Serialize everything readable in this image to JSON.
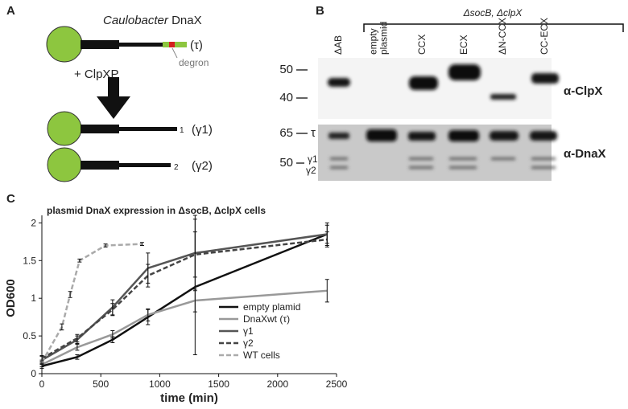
{
  "panels": {
    "A": {
      "letter": "A",
      "organism": "Caulobacter",
      "protein": "DnaX",
      "full_label": "(τ)",
      "degron": "degron",
      "protease": "+ ClpXP",
      "products": [
        {
          "end": "1",
          "label": "(γ1)"
        },
        {
          "end": "2",
          "label": "(γ2)"
        }
      ]
    },
    "B": {
      "letter": "B",
      "strain": "ΔsocB, ΔclpX",
      "lanes": [
        [
          "ΔAB"
        ],
        [
          "empty",
          "plasmid"
        ],
        [
          "CCX"
        ],
        [
          "ECX"
        ],
        [
          "ΔN-CCX"
        ],
        [
          "CC-ECX"
        ]
      ],
      "blots": [
        {
          "antibody": "α-ClpX",
          "markers": [
            "50",
            "40"
          ]
        },
        {
          "antibody": "α-DnaX",
          "markers": [
            "65",
            "50"
          ],
          "bands": [
            "τ",
            "γ1",
            "γ2"
          ]
        }
      ]
    },
    "C": {
      "letter": "C"
    }
  },
  "chart_data": {
    "type": "line",
    "title": "plasmid DnaX expression in ΔsocB, ΔclpX cells",
    "xlabel": "time (min)",
    "ylabel": "OD600",
    "xlim": [
      0,
      2500
    ],
    "xticks": [
      0,
      500,
      1000,
      1500,
      2000,
      2500
    ],
    "ylim": [
      0,
      2.1
    ],
    "yticks": [
      0,
      0.5,
      1,
      1.5,
      2
    ],
    "legend": "lower right",
    "series": [
      {
        "name": "empty plamid",
        "color": "#111111",
        "dash": false,
        "x": [
          0,
          300,
          600,
          900,
          1300,
          2420
        ],
        "values": [
          0.1,
          0.22,
          0.45,
          0.75,
          1.15,
          1.85
        ],
        "errors": [
          0.03,
          0.03,
          0.04,
          0.1,
          0.9,
          0.12
        ]
      },
      {
        "name": "DnaXwt (τ)",
        "color": "#999999",
        "dash": false,
        "x": [
          0,
          300,
          600,
          900,
          1300,
          2420
        ],
        "values": [
          0.12,
          0.35,
          0.52,
          0.78,
          0.97,
          1.1
        ],
        "errors": [
          0.03,
          0.04,
          0.05,
          0.08,
          0.15,
          0.15
        ]
      },
      {
        "name": "γ1",
        "color": "#555555",
        "dash": false,
        "x": [
          0,
          300,
          600,
          900,
          1300,
          2420
        ],
        "values": [
          0.18,
          0.45,
          0.88,
          1.4,
          1.6,
          1.85
        ],
        "errors": [
          0.05,
          0.05,
          0.1,
          0.2,
          0.5,
          0.15
        ]
      },
      {
        "name": "γ2",
        "color": "#444444",
        "dash": true,
        "x": [
          0,
          300,
          600,
          900,
          1300,
          2420
        ],
        "values": [
          0.2,
          0.47,
          0.85,
          1.3,
          1.58,
          1.78
        ],
        "errors": [
          0.04,
          0.05,
          0.08,
          0.15,
          0.3,
          0.1
        ]
      },
      {
        "name": "WT cells",
        "color": "#aaaaaa",
        "dash": true,
        "x": [
          0,
          170,
          240,
          320,
          540,
          850
        ],
        "values": [
          0.15,
          0.62,
          1.05,
          1.5,
          1.7,
          1.72
        ],
        "errors": [
          0.03,
          0.04,
          0.04,
          0.02,
          0.02,
          0.02
        ]
      }
    ]
  }
}
